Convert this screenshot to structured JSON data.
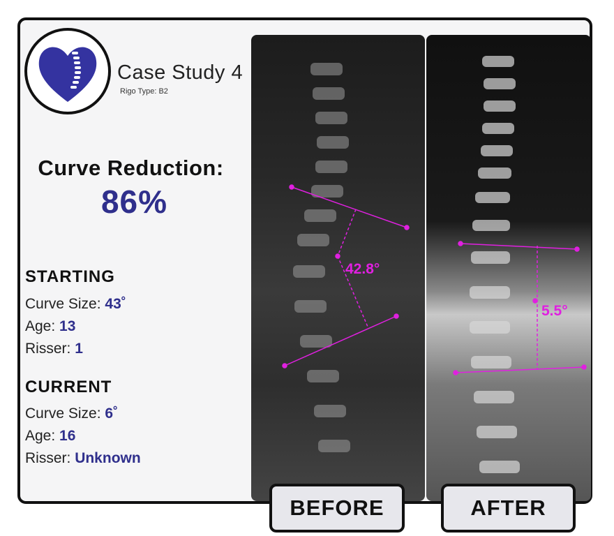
{
  "header": {
    "title": "Case Study 4",
    "subtitle": "Rigo Type: B2"
  },
  "summary": {
    "label": "Curve Reduction:",
    "value": "86%"
  },
  "starting": {
    "heading": "STARTING",
    "curve_label": "Curve Size:",
    "curve_value": "43˚",
    "age_label": "Age:",
    "age_value": "13",
    "risser_label": "Risser:",
    "risser_value": "1"
  },
  "current": {
    "heading": "CURRENT",
    "curve_label": "Curve Size:",
    "curve_value": "6˚",
    "age_label": "Age:",
    "age_value": "16",
    "risser_label": "Risser:",
    "risser_value": "Unknown"
  },
  "images": {
    "before_angle": "42.8°",
    "after_angle": "5.5°",
    "before_label": "BEFORE",
    "after_label": "AFTER"
  },
  "colors": {
    "accent": "#2f2f8c",
    "measure": "#e020e0",
    "logo": "#3433a0"
  },
  "icons": {
    "logo": "heart-spine-icon"
  }
}
